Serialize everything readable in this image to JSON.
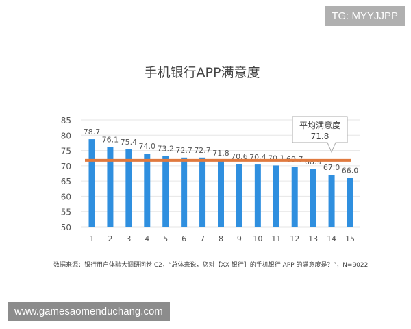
{
  "watermark_tg": "TG: MYYJJPP",
  "watermark_site": "www.gamesaomenduchang.com",
  "chart_data": {
    "type": "bar",
    "title": "手机银行APP满意度",
    "categories": [
      "1",
      "2",
      "3",
      "4",
      "5",
      "6",
      "7",
      "8",
      "9",
      "10",
      "11",
      "12",
      "13",
      "14",
      "15"
    ],
    "values": [
      78.7,
      76.1,
      75.4,
      74.0,
      73.2,
      72.7,
      72.7,
      71.8,
      70.6,
      70.4,
      70.1,
      69.7,
      68.9,
      67.0,
      66.0
    ],
    "ylim": [
      50,
      85
    ],
    "yticks": [
      50,
      55,
      60,
      65,
      70,
      75,
      80,
      85
    ],
    "grid": true,
    "average": {
      "label": "平均满意度",
      "value": 71.8,
      "value_label": "71.8"
    },
    "source": "数据来源：银行用户体验大调研问卷 C2，“总体来说，您对【XX 银行】的手机银行 APP 的满意度是？”，N=9022",
    "colors": {
      "bar": "#2f8fdf",
      "average_line": "#e07a3f",
      "grid": "#e6e6e6"
    }
  }
}
